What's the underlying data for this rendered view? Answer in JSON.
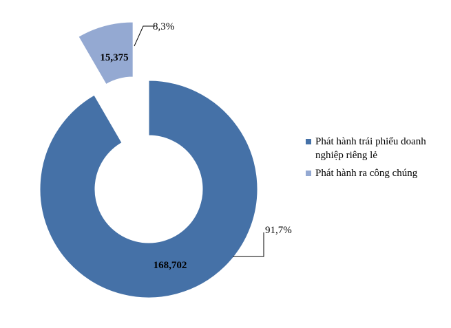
{
  "chart_data": {
    "type": "pie",
    "style": "donut-exploded",
    "series": [
      {
        "name": "Phát hành trái phiếu doanh nghiệp riêng lẻ",
        "value": 168702,
        "value_label": "168,702",
        "percent_label": "91,7%",
        "color": "#4571a7"
      },
      {
        "name": "Phát hành ra công chúng",
        "value": 15375,
        "value_label": "15,375",
        "percent_label": "8,3%",
        "color": "#94a9d2"
      }
    ],
    "legend_position": "right"
  }
}
